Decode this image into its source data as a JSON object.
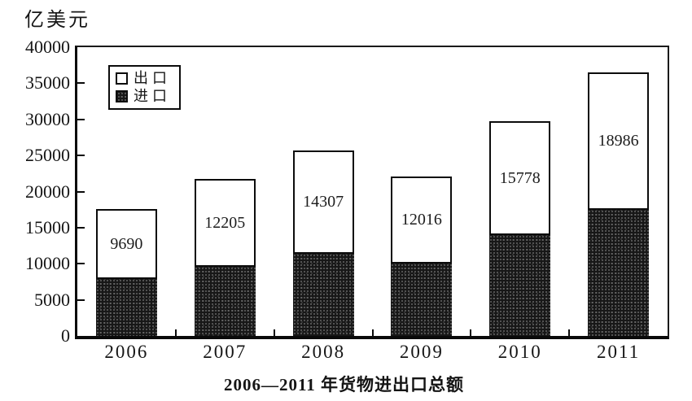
{
  "unit_label": "亿美元",
  "title": "2006—2011 年货物进出口总额",
  "legend": {
    "export_label": "出口",
    "import_label": "进口"
  },
  "chart_data": {
    "type": "bar",
    "stacked": true,
    "title": "2006—2011 年货物进出口总额",
    "ylabel": "亿美元",
    "xlabel": "",
    "categories": [
      "2006",
      "2007",
      "2008",
      "2009",
      "2010",
      "2011"
    ],
    "series": [
      {
        "name": "出口",
        "values": [
          9690,
          12205,
          14307,
          12016,
          15778,
          18986
        ],
        "labeled": true,
        "fill": "white"
      },
      {
        "name": "进口",
        "values": [
          7915,
          9560,
          11325,
          10060,
          13950,
          17435
        ],
        "labeled": false,
        "fill": "dark-stipple"
      }
    ],
    "totals_estimated": [
      17605,
      21765,
      25632,
      22076,
      29728,
      36421
    ],
    "ylim": [
      0,
      40000
    ],
    "yticks": [
      0,
      5000,
      10000,
      15000,
      20000,
      25000,
      30000,
      35000,
      40000
    ],
    "legend_position": "top-left-inside",
    "grid": false
  },
  "colors": {
    "background": "#ffffff",
    "axis": "#0a0a0a",
    "export_fill": "#ffffff",
    "import_fill": "#171717",
    "text": "#161616"
  }
}
